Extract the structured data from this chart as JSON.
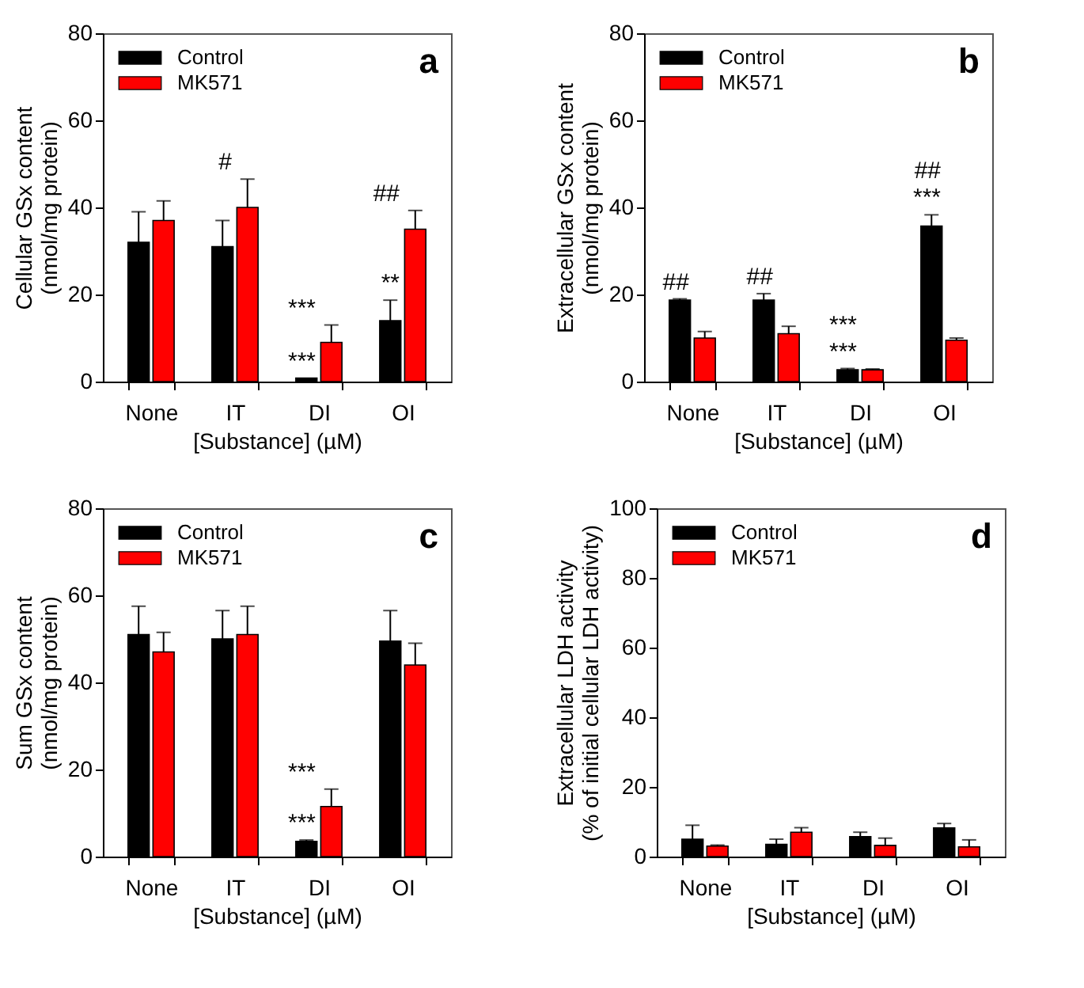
{
  "chart_data": [
    {
      "type": "bar",
      "categories": [
        "None",
        "IT",
        "DI",
        "OI"
      ],
      "xlabel": "[Substance] (µM)",
      "ylabel": "Cellular GSx content\n(nmol/mg protein)",
      "ylim": [
        0,
        80
      ],
      "yticks": [
        0,
        20,
        40,
        60,
        80
      ],
      "legend": "top left",
      "series": [
        {
          "name": "Control",
          "color": "#000000",
          "values": [
            32,
            31,
            0.8,
            14
          ],
          "errors": [
            [
              32,
              39
            ],
            [
              31,
              37
            ],
            null,
            [
              14,
              18.7
            ]
          ]
        },
        {
          "name": "MK571",
          "color": "#ff0000",
          "values": [
            37,
            40,
            9,
            35
          ],
          "errors": [
            [
              37,
              41.5
            ],
            [
              40,
              46.5
            ],
            [
              9,
              13
            ],
            [
              35,
              39.3
            ]
          ]
        }
      ],
      "annotations": [
        "a",
        {
          "text": "#",
          "x": "IT",
          "y": 46.5
        },
        {
          "text": "##",
          "x": "OI",
          "y": 39.3
        },
        {
          "text": "***",
          "x": "DI",
          "y": 0.8
        },
        {
          "text": "***",
          "x": "DI",
          "y": 13
        },
        {
          "text": "**",
          "x": "OI",
          "y": 18.7
        }
      ]
    },
    {
      "type": "bar",
      "categories": [
        "None",
        "IT",
        "DI",
        "OI"
      ],
      "xlabel": "[Substance] (µM)",
      "ylabel": "Extracellular GSx content\n(nmol/mg protein)",
      "ylim": [
        0,
        80
      ],
      "yticks": [
        0,
        20,
        40,
        60,
        80
      ],
      "legend": "top left",
      "series": [
        {
          "name": "Control",
          "color": "#000000",
          "values": [
            18.7,
            18.7,
            2.7,
            35.7
          ],
          "errors": [
            [
              18.7,
              19
            ],
            [
              18.7,
              20.2
            ],
            [
              2.7,
              3
            ],
            [
              35.7,
              38.3
            ]
          ]
        },
        {
          "name": "MK571",
          "color": "#ff0000",
          "values": [
            10,
            11,
            2.7,
            9.5
          ],
          "errors": [
            [
              10,
              11.5
            ],
            [
              11,
              12.7
            ],
            [
              2.7,
              2.9
            ],
            [
              9.5,
              10
            ]
          ]
        }
      ],
      "annotations": [
        "b",
        {
          "text": "##",
          "x": "None",
          "y": 19
        },
        {
          "text": "##",
          "x": "IT",
          "y": 20.2
        },
        {
          "text": "***",
          "x": "OI",
          "y": 38.3
        },
        {
          "text": "##",
          "x": "OI",
          "y": 38.3
        },
        {
          "text": "***",
          "x": "DI",
          "y": 2.9
        },
        {
          "text": "***",
          "x": "DI",
          "y": 3
        }
      ]
    },
    {
      "type": "bar",
      "categories": [
        "None",
        "IT",
        "DI",
        "OI"
      ],
      "xlabel": "[Substance] (µM)",
      "ylabel": "Sum GSx content\n(nmol/mg protein)",
      "ylim": [
        0,
        80
      ],
      "yticks": [
        0,
        20,
        40,
        60,
        80
      ],
      "legend": "top left",
      "series": [
        {
          "name": "Control",
          "color": "#000000",
          "values": [
            51,
            50,
            3.5,
            49.5
          ],
          "errors": [
            [
              51,
              57.5
            ],
            [
              50,
              56.5
            ],
            [
              3.5,
              3.8
            ],
            [
              49.5,
              56.5
            ]
          ]
        },
        {
          "name": "MK571",
          "color": "#ff0000",
          "values": [
            47,
            51,
            11.5,
            44
          ],
          "errors": [
            [
              47,
              51.5
            ],
            [
              51,
              57.5
            ],
            [
              11.5,
              15.5
            ],
            [
              44,
              49
            ]
          ]
        }
      ],
      "annotations": [
        "c",
        {
          "text": "***",
          "x": "DI",
          "y": 3.8
        },
        {
          "text": "***",
          "x": "DI",
          "y": 15.5
        }
      ]
    },
    {
      "type": "bar",
      "categories": [
        "None",
        "IT",
        "DI",
        "OI"
      ],
      "xlabel": "[Substance] (µM)",
      "ylabel": "Extracellular LDH activity\n(% of initial cellular LDH activity)",
      "ylim": [
        0,
        100
      ],
      "yticks": [
        0,
        20,
        40,
        60,
        80,
        100
      ],
      "legend": "top left",
      "series": [
        {
          "name": "Control",
          "color": "#000000",
          "values": [
            5,
            3.5,
            5.7,
            8.2
          ],
          "errors": [
            [
              5,
              9
            ],
            [
              3.5,
              5
            ],
            [
              5.7,
              7
            ],
            [
              8.2,
              9.5
            ]
          ]
        },
        {
          "name": "MK571",
          "color": "#ff0000",
          "values": [
            3,
            7,
            3.2,
            2.8
          ],
          "errors": [
            [
              3,
              3.3
            ],
            [
              7,
              8.3
            ],
            [
              3.2,
              5.3
            ],
            [
              2.8,
              4.8
            ]
          ]
        }
      ],
      "annotations": [
        "d"
      ]
    }
  ]
}
